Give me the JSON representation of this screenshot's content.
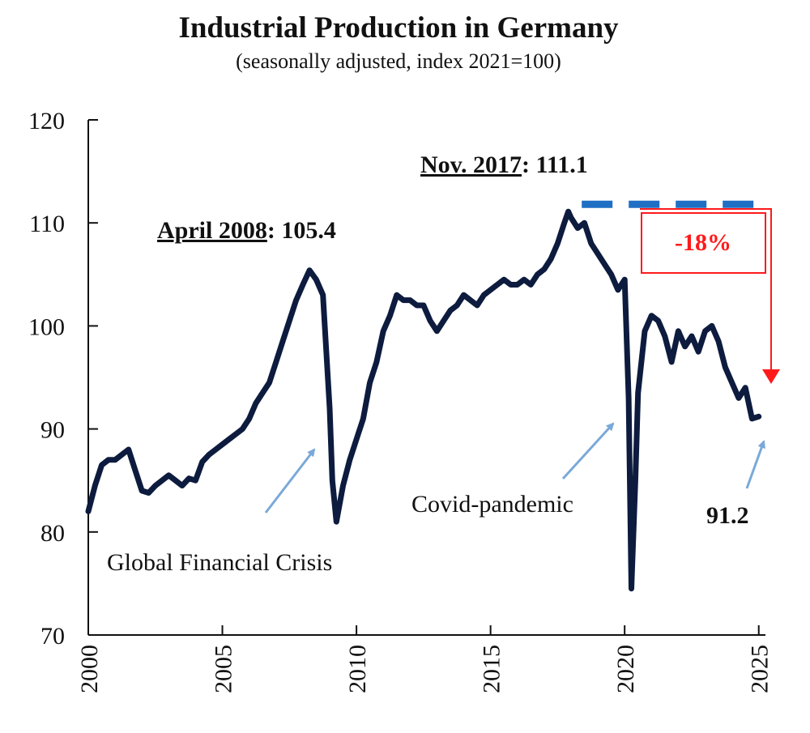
{
  "colors": {
    "series": "#0d1b3e",
    "arrow": "#7aa9d8",
    "peak_line": "#1f6fc4",
    "decline": "#ff1a1a",
    "axis": "#111111"
  },
  "chart_data": {
    "type": "line",
    "title": "Industrial Production in Germany",
    "subtitle": "(seasonally adjusted, index 2021=100)",
    "xlabel": "",
    "ylabel": "",
    "xlim": [
      2000,
      2025.25
    ],
    "ylim": [
      70,
      120
    ],
    "grid": false,
    "x_ticks": [
      "2000",
      "2005",
      "2010",
      "2015",
      "2020",
      "2025"
    ],
    "y_ticks": [
      "70",
      "80",
      "90",
      "100",
      "110",
      "120"
    ],
    "series": [
      {
        "name": "Industrial Production",
        "points": [
          [
            2000.0,
            82.0
          ],
          [
            2000.25,
            84.5
          ],
          [
            2000.5,
            86.5
          ],
          [
            2000.75,
            87.0
          ],
          [
            2001.0,
            87.0
          ],
          [
            2001.25,
            87.5
          ],
          [
            2001.5,
            88.0
          ],
          [
            2001.75,
            86.0
          ],
          [
            2002.0,
            84.0
          ],
          [
            2002.25,
            83.8
          ],
          [
            2002.5,
            84.5
          ],
          [
            2002.75,
            85.0
          ],
          [
            2003.0,
            85.5
          ],
          [
            2003.25,
            85.0
          ],
          [
            2003.5,
            84.5
          ],
          [
            2003.75,
            85.2
          ],
          [
            2004.0,
            85.0
          ],
          [
            2004.25,
            86.8
          ],
          [
            2004.5,
            87.5
          ],
          [
            2004.75,
            88.0
          ],
          [
            2005.0,
            88.5
          ],
          [
            2005.25,
            89.0
          ],
          [
            2005.5,
            89.5
          ],
          [
            2005.75,
            90.0
          ],
          [
            2006.0,
            91.0
          ],
          [
            2006.25,
            92.5
          ],
          [
            2006.5,
            93.5
          ],
          [
            2006.75,
            94.5
          ],
          [
            2007.0,
            96.5
          ],
          [
            2007.25,
            98.5
          ],
          [
            2007.5,
            100.5
          ],
          [
            2007.75,
            102.5
          ],
          [
            2008.0,
            104.0
          ],
          [
            2008.25,
            105.4
          ],
          [
            2008.5,
            104.5
          ],
          [
            2008.75,
            103.0
          ],
          [
            2009.0,
            92.0
          ],
          [
            2009.1,
            85.0
          ],
          [
            2009.25,
            81.0
          ],
          [
            2009.5,
            84.5
          ],
          [
            2009.75,
            87.0
          ],
          [
            2010.0,
            89.0
          ],
          [
            2010.25,
            91.0
          ],
          [
            2010.5,
            94.5
          ],
          [
            2010.75,
            96.5
          ],
          [
            2011.0,
            99.5
          ],
          [
            2011.25,
            101.0
          ],
          [
            2011.5,
            103.0
          ],
          [
            2011.75,
            102.5
          ],
          [
            2012.0,
            102.5
          ],
          [
            2012.25,
            102.0
          ],
          [
            2012.5,
            102.0
          ],
          [
            2012.75,
            100.5
          ],
          [
            2013.0,
            99.5
          ],
          [
            2013.25,
            100.5
          ],
          [
            2013.5,
            101.5
          ],
          [
            2013.75,
            102.0
          ],
          [
            2014.0,
            103.0
          ],
          [
            2014.25,
            102.5
          ],
          [
            2014.5,
            102.0
          ],
          [
            2014.75,
            103.0
          ],
          [
            2015.0,
            103.5
          ],
          [
            2015.25,
            104.0
          ],
          [
            2015.5,
            104.5
          ],
          [
            2015.75,
            104.0
          ],
          [
            2016.0,
            104.0
          ],
          [
            2016.25,
            104.5
          ],
          [
            2016.5,
            104.0
          ],
          [
            2016.75,
            105.0
          ],
          [
            2017.0,
            105.5
          ],
          [
            2017.25,
            106.5
          ],
          [
            2017.5,
            108.0
          ],
          [
            2017.75,
            110.0
          ],
          [
            2017.9,
            111.1
          ],
          [
            2018.0,
            110.5
          ],
          [
            2018.25,
            109.5
          ],
          [
            2018.5,
            110.0
          ],
          [
            2018.75,
            108.0
          ],
          [
            2019.0,
            107.0
          ],
          [
            2019.25,
            106.0
          ],
          [
            2019.5,
            105.0
          ],
          [
            2019.75,
            103.5
          ],
          [
            2020.0,
            104.5
          ],
          [
            2020.15,
            93.0
          ],
          [
            2020.25,
            74.5
          ],
          [
            2020.4,
            85.0
          ],
          [
            2020.5,
            93.5
          ],
          [
            2020.75,
            99.5
          ],
          [
            2021.0,
            101.0
          ],
          [
            2021.25,
            100.5
          ],
          [
            2021.5,
            99.0
          ],
          [
            2021.75,
            96.5
          ],
          [
            2022.0,
            99.5
          ],
          [
            2022.25,
            98.0
          ],
          [
            2022.5,
            99.0
          ],
          [
            2022.75,
            97.5
          ],
          [
            2023.0,
            99.5
          ],
          [
            2023.25,
            100.0
          ],
          [
            2023.5,
            98.5
          ],
          [
            2023.75,
            96.0
          ],
          [
            2024.0,
            94.5
          ],
          [
            2024.25,
            93.0
          ],
          [
            2024.5,
            94.0
          ],
          [
            2024.75,
            91.0
          ],
          [
            2025.0,
            91.2
          ]
        ]
      }
    ],
    "annotations": {
      "peak_2008_date": "April 2008",
      "peak_2008_value": ": 105.4",
      "peak_2017_date": "Nov. 2017",
      "peak_2017_value": ": 111.1",
      "crisis_label": "Global Financial Crisis",
      "covid_label": "Covid-pandemic",
      "latest_value": "91.2",
      "decline_pct": "-18%"
    },
    "reference_line": {
      "y": 111.8,
      "x_start": 2018.4,
      "x_end": 2025.1
    }
  }
}
